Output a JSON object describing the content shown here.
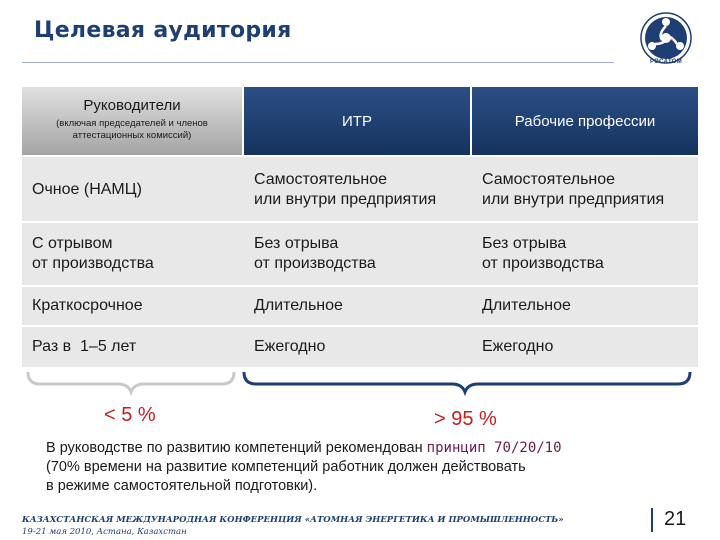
{
  "title": "Целевая аудитория",
  "logo": {
    "caption": "РОСАТОМ"
  },
  "table": {
    "header": {
      "col1_title": "Руководители",
      "col1_subtitle": "(включая председателей и членов аттестационных комиссий)",
      "col2": "ИТР",
      "col3": "Рабочие профессии"
    },
    "rows": [
      {
        "c1": [
          "Очное (НАМЦ)"
        ],
        "c2": [
          "Самостоятельное",
          "или внутри предприятия"
        ],
        "c3": [
          "Самостоятельное",
          "или внутри предприятия"
        ]
      },
      {
        "c1": [
          "С отрывом",
          "от производства"
        ],
        "c2": [
          "Без отрыва",
          "от производства"
        ],
        "c3": [
          "Без отрыва",
          "от производства"
        ]
      },
      {
        "c1": [
          "Краткосрочное"
        ],
        "c2": [
          "Длительное"
        ],
        "c3": [
          "Длительное"
        ]
      },
      {
        "c1": [
          "Раз в  1–5 лет"
        ],
        "c2": [
          "Ежегодно"
        ],
        "c3": [
          "Ежегодно"
        ]
      }
    ]
  },
  "braces": {
    "left_label": "< 5 %",
    "right_label": "> 95 %"
  },
  "note": {
    "line1_prefix": "В руководстве по развитию компетенций рекомендован ",
    "line1_highlight": "принцип 70/20/10",
    "line2": "(70% времени на развитие компетенций работник должен действовать",
    "line3": "в режиме самостоятельной подготовки)."
  },
  "footer": {
    "line1": "КАЗАХСТАНСКАЯ МЕЖДУНАРОДНАЯ КОНФЕРЕНЦИЯ «АТОМНАЯ ЭНЕРГЕТИКА И ПРОМЫШЛЕННОСТЬ»",
    "line2": "19-21 мая 2010, Астана, Казахстан",
    "page": "21"
  },
  "colors": {
    "brand": "#1e3f73",
    "header_blue": "#1f4377",
    "row_gray": "#e8e8e8",
    "accent_red": "#c41e1e",
    "highlight": "#6b1c4a"
  }
}
